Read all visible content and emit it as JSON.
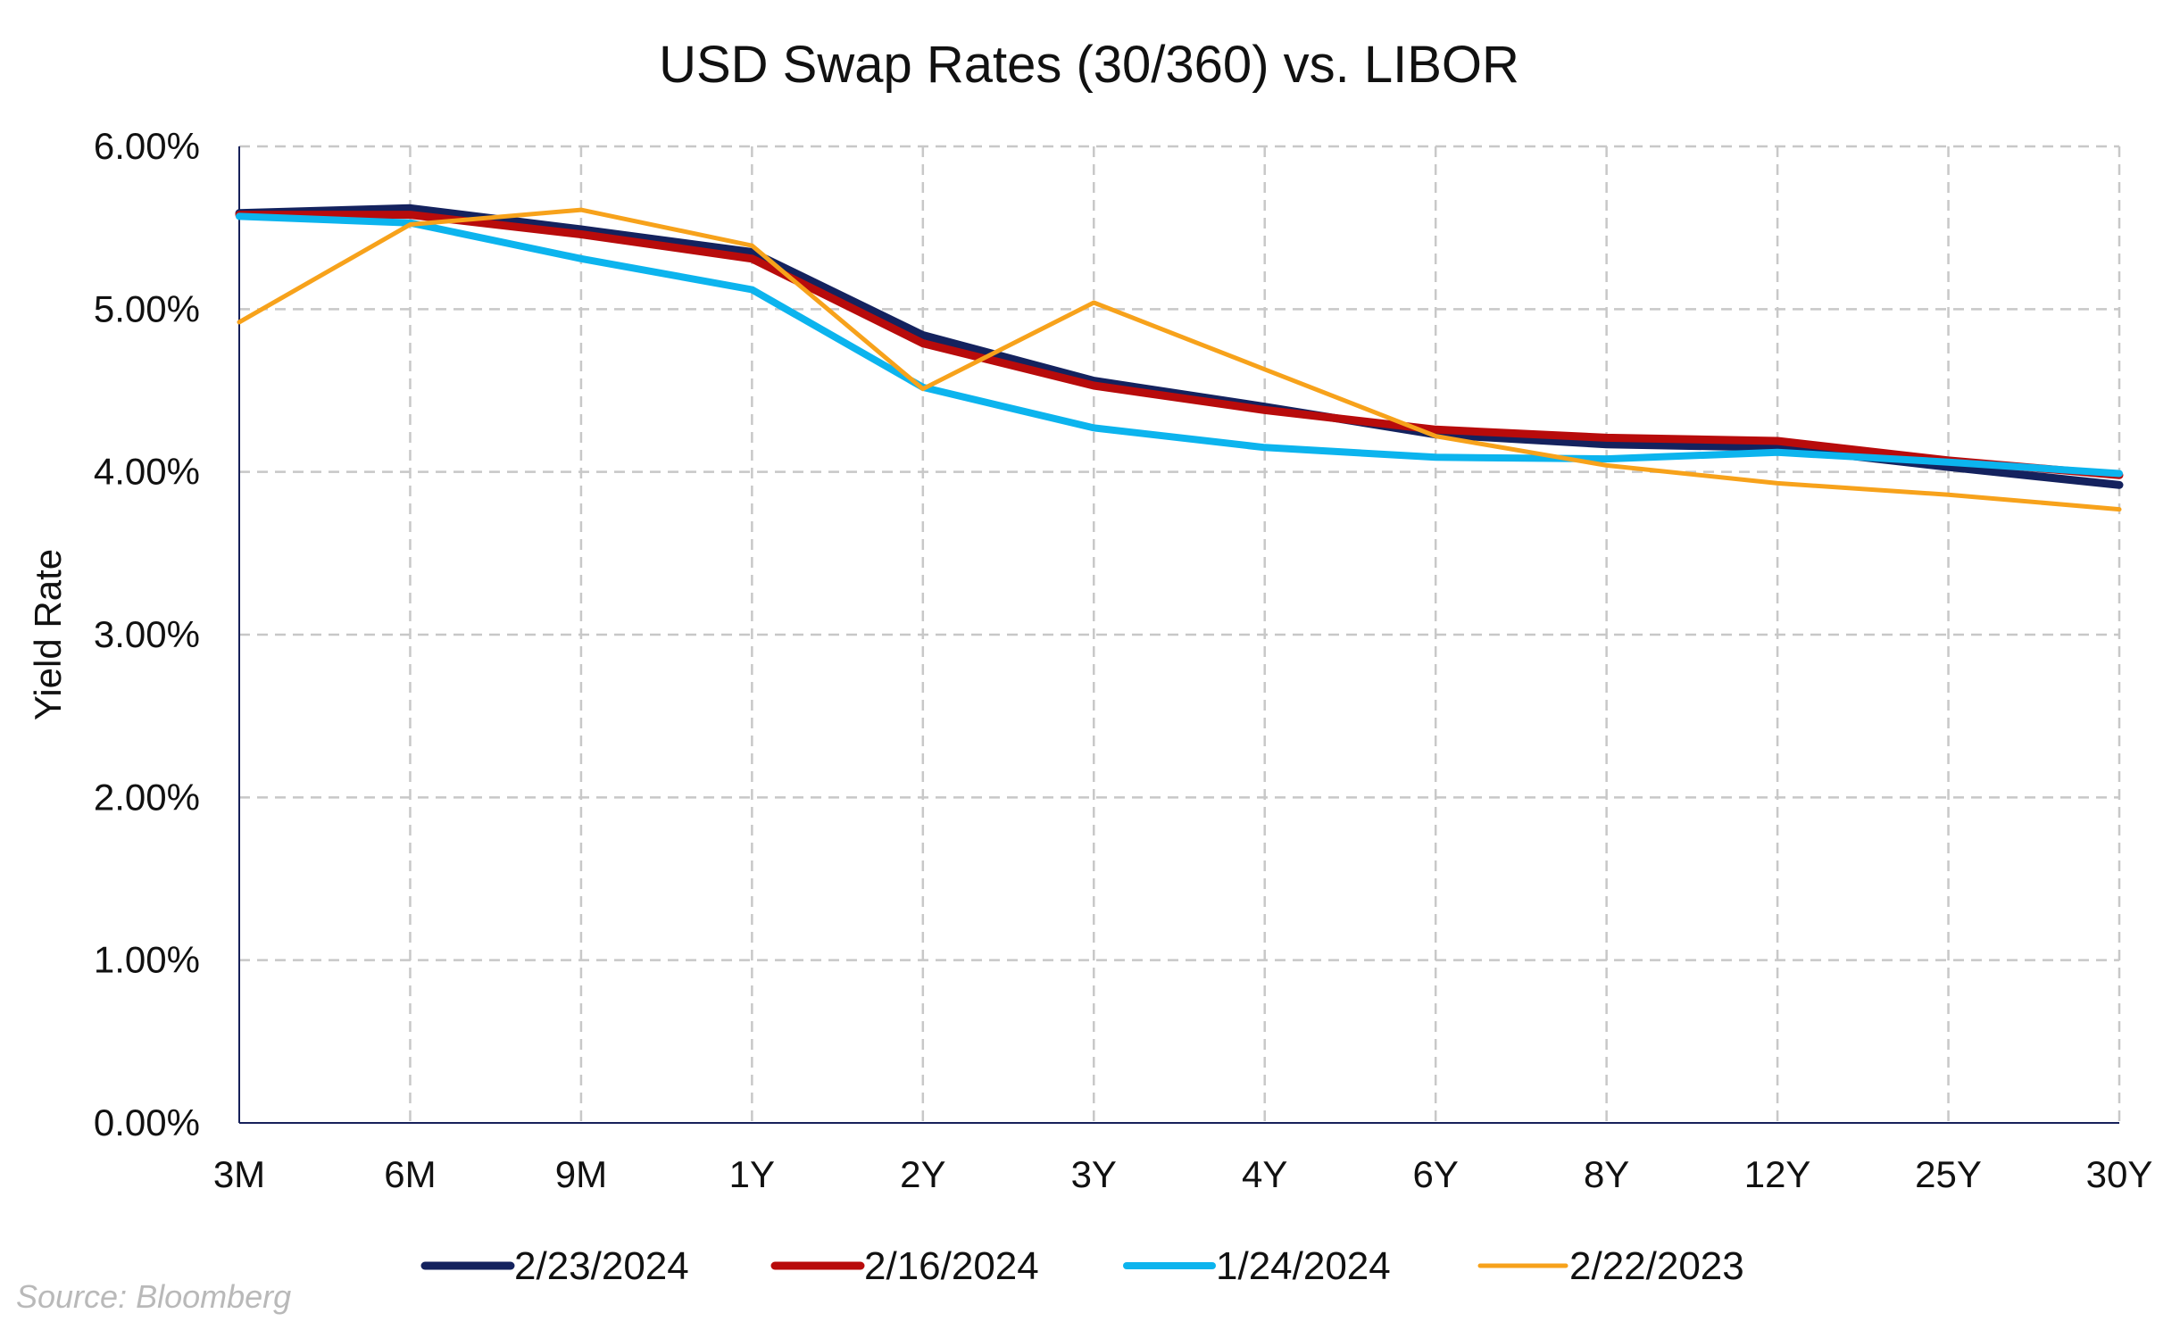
{
  "chart_data": {
    "type": "line",
    "title": "USD Swap Rates (30/360) vs. LIBOR",
    "xlabel": "",
    "ylabel": "Yield Rate",
    "categories": [
      "3M",
      "6M",
      "9M",
      "1Y",
      "2Y",
      "3Y",
      "4Y",
      "6Y",
      "8Y",
      "12Y",
      "25Y",
      "30Y"
    ],
    "ylim": [
      0,
      6
    ],
    "yticks": [
      0,
      1,
      2,
      3,
      4,
      5,
      6
    ],
    "ytick_labels": [
      "0.00%",
      "1.00%",
      "2.00%",
      "3.00%",
      "4.00%",
      "5.00%",
      "6.00%"
    ],
    "grid": true,
    "legend_position": "bottom",
    "series": [
      {
        "name": "2/23/2024",
        "color": "#14225e",
        "values": [
          5.59,
          5.62,
          5.49,
          5.35,
          4.84,
          4.56,
          4.4,
          4.23,
          4.17,
          4.15,
          4.03,
          3.92
        ]
      },
      {
        "name": "2/16/2024",
        "color": "#b80b0b",
        "values": [
          5.58,
          5.58,
          5.46,
          5.31,
          4.79,
          4.53,
          4.38,
          4.26,
          4.21,
          4.19,
          4.07,
          3.98
        ]
      },
      {
        "name": "1/24/2024",
        "color": "#0cb4ee",
        "values": [
          5.57,
          5.53,
          5.31,
          5.12,
          4.52,
          4.27,
          4.15,
          4.09,
          4.08,
          4.12,
          4.06,
          3.99
        ]
      },
      {
        "name": "2/22/2023",
        "color": "#f7a21b",
        "values": [
          4.92,
          5.52,
          5.61,
          5.39,
          4.51,
          5.04,
          4.63,
          4.22,
          4.04,
          3.93,
          3.86,
          3.77
        ]
      }
    ],
    "source": "Source: Bloomberg"
  }
}
